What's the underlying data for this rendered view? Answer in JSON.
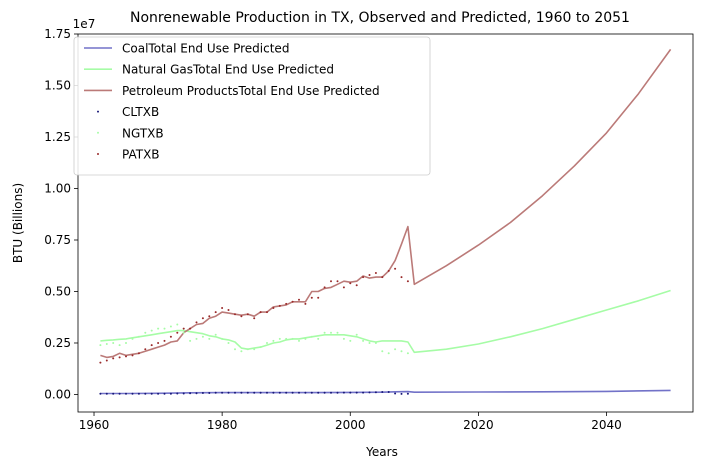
{
  "chart_data": {
    "type": "line",
    "title": "Nonrenewable Production in TX, Observed and Predicted, 1960 to 2051",
    "xlabel": "Years",
    "ylabel": "BTU (Billions)",
    "offset_text": "1e7",
    "xlim": [
      1957.5,
      2053.5
    ],
    "ylim": [
      -0.085,
      1.75
    ],
    "y_scale_factor": 10000000,
    "x_ticks": [
      1960,
      1980,
      2000,
      2020,
      2040
    ],
    "y_ticks": [
      0.0,
      0.25,
      0.5,
      0.75,
      1.0,
      1.25,
      1.5,
      1.75
    ],
    "y_tick_labels": [
      "0.00",
      "0.25",
      "0.50",
      "0.75",
      "1.00",
      "1.25",
      "1.50",
      "1.75"
    ],
    "grid": false,
    "legend_position": "upper-left",
    "colors": {
      "coal": "#7272c8",
      "coal_dots": "#1a1a7a",
      "ng": "#a6fca6",
      "pet": "#bb7a78",
      "pet_dots": "#9a2a2a"
    },
    "series": [
      {
        "name": "CoalTotal End Use Predicted",
        "kind": "line",
        "color_key": "coal",
        "x": [
          1961,
          1965,
          1970,
          1975,
          1980,
          1985,
          1990,
          1995,
          2000,
          2005,
          2007,
          2009,
          2010,
          2020,
          2030,
          2040,
          2050
        ],
        "y": [
          0.005,
          0.005,
          0.006,
          0.008,
          0.009,
          0.009,
          0.009,
          0.009,
          0.01,
          0.011,
          0.013,
          0.014,
          0.011,
          0.012,
          0.013,
          0.015,
          0.02
        ]
      },
      {
        "name": "Natural GasTotal End Use Predicted",
        "kind": "line",
        "color_key": "ng",
        "x": [
          1961,
          1962,
          1963,
          1964,
          1965,
          1966,
          1967,
          1968,
          1969,
          1970,
          1971,
          1972,
          1973,
          1974,
          1975,
          1976,
          1977,
          1978,
          1979,
          1980,
          1981,
          1982,
          1983,
          1984,
          1985,
          1986,
          1987,
          1988,
          1989,
          1990,
          1991,
          1992,
          1993,
          1994,
          1995,
          1996,
          1997,
          1998,
          1999,
          2000,
          2001,
          2002,
          2003,
          2004,
          2005,
          2006,
          2007,
          2008,
          2009,
          2010,
          2015,
          2020,
          2025,
          2030,
          2035,
          2040,
          2045,
          2050
        ],
        "y": [
          0.26,
          0.263,
          0.265,
          0.268,
          0.27,
          0.275,
          0.28,
          0.285,
          0.29,
          0.295,
          0.3,
          0.305,
          0.31,
          0.31,
          0.305,
          0.3,
          0.295,
          0.285,
          0.28,
          0.27,
          0.265,
          0.255,
          0.225,
          0.22,
          0.225,
          0.23,
          0.24,
          0.25,
          0.255,
          0.265,
          0.27,
          0.27,
          0.275,
          0.28,
          0.285,
          0.29,
          0.29,
          0.29,
          0.29,
          0.285,
          0.28,
          0.27,
          0.26,
          0.255,
          0.26,
          0.26,
          0.26,
          0.26,
          0.255,
          0.205,
          0.22,
          0.245,
          0.28,
          0.32,
          0.365,
          0.41,
          0.455,
          0.505
        ]
      },
      {
        "name": "Petroleum ProductsTotal End Use Predicted",
        "kind": "line",
        "color_key": "pet",
        "x": [
          1961,
          1962,
          1963,
          1964,
          1965,
          1966,
          1967,
          1968,
          1969,
          1970,
          1971,
          1972,
          1973,
          1974,
          1975,
          1976,
          1977,
          1978,
          1979,
          1980,
          1981,
          1982,
          1983,
          1984,
          1985,
          1986,
          1987,
          1988,
          1989,
          1990,
          1991,
          1992,
          1993,
          1994,
          1995,
          1996,
          1997,
          1998,
          1999,
          2000,
          2001,
          2002,
          2003,
          2004,
          2005,
          2006,
          2007,
          2008,
          2009,
          2010,
          2015,
          2020,
          2025,
          2030,
          2035,
          2040,
          2045,
          2050
        ],
        "y": [
          0.19,
          0.18,
          0.185,
          0.2,
          0.19,
          0.195,
          0.2,
          0.21,
          0.22,
          0.23,
          0.24,
          0.255,
          0.26,
          0.3,
          0.32,
          0.34,
          0.345,
          0.37,
          0.38,
          0.4,
          0.395,
          0.39,
          0.385,
          0.39,
          0.38,
          0.4,
          0.4,
          0.425,
          0.43,
          0.435,
          0.45,
          0.45,
          0.45,
          0.5,
          0.5,
          0.515,
          0.52,
          0.535,
          0.55,
          0.545,
          0.55,
          0.575,
          0.565,
          0.57,
          0.57,
          0.6,
          0.65,
          0.73,
          0.815,
          0.535,
          0.625,
          0.725,
          0.835,
          0.965,
          1.11,
          1.27,
          1.46,
          1.675
        ]
      },
      {
        "name": "CLTXB",
        "kind": "scatter",
        "color_key": "coal_dots",
        "x": [
          1961,
          1962,
          1963,
          1964,
          1965,
          1966,
          1967,
          1968,
          1969,
          1970,
          1971,
          1972,
          1973,
          1974,
          1975,
          1976,
          1977,
          1978,
          1979,
          1980,
          1981,
          1982,
          1983,
          1984,
          1985,
          1986,
          1987,
          1988,
          1989,
          1990,
          1991,
          1992,
          1993,
          1994,
          1995,
          1996,
          1997,
          1998,
          1999,
          2000,
          2001,
          2002,
          2003,
          2004,
          2005,
          2006,
          2007,
          2008,
          2009
        ],
        "y": [
          0.004,
          0.004,
          0.004,
          0.004,
          0.004,
          0.004,
          0.004,
          0.004,
          0.004,
          0.004,
          0.004,
          0.004,
          0.005,
          0.005,
          0.006,
          0.006,
          0.007,
          0.007,
          0.008,
          0.008,
          0.008,
          0.008,
          0.008,
          0.008,
          0.008,
          0.008,
          0.008,
          0.008,
          0.008,
          0.008,
          0.008,
          0.008,
          0.008,
          0.008,
          0.008,
          0.008,
          0.008,
          0.008,
          0.009,
          0.009,
          0.009,
          0.009,
          0.01,
          0.011,
          0.012,
          0.012,
          0.005,
          0.003,
          0.004
        ]
      },
      {
        "name": "NGTXB",
        "kind": "scatter",
        "color_key": "ng",
        "x": [
          1961,
          1962,
          1963,
          1964,
          1965,
          1966,
          1967,
          1968,
          1969,
          1970,
          1971,
          1972,
          1973,
          1974,
          1975,
          1976,
          1977,
          1978,
          1979,
          1980,
          1981,
          1982,
          1983,
          1984,
          1985,
          1986,
          1987,
          1988,
          1989,
          1990,
          1991,
          1992,
          1993,
          1994,
          1995,
          1996,
          1997,
          1998,
          1999,
          2000,
          2001,
          2002,
          2003,
          2004,
          2005,
          2006,
          2007,
          2008,
          2009
        ],
        "y": [
          0.24,
          0.245,
          0.25,
          0.24,
          0.25,
          0.27,
          0.28,
          0.3,
          0.31,
          0.32,
          0.32,
          0.33,
          0.34,
          0.3,
          0.26,
          0.27,
          0.28,
          0.27,
          0.29,
          0.27,
          0.25,
          0.22,
          0.21,
          0.22,
          0.22,
          0.23,
          0.25,
          0.26,
          0.27,
          0.27,
          0.27,
          0.26,
          0.27,
          0.28,
          0.27,
          0.3,
          0.3,
          0.3,
          0.27,
          0.26,
          0.29,
          0.26,
          0.25,
          0.25,
          0.21,
          0.2,
          0.22,
          0.21,
          0.2
        ]
      },
      {
        "name": "PATXB",
        "kind": "scatter",
        "color_key": "pet_dots",
        "x": [
          1961,
          1962,
          1963,
          1964,
          1965,
          1966,
          1967,
          1968,
          1969,
          1970,
          1971,
          1972,
          1973,
          1974,
          1975,
          1976,
          1977,
          1978,
          1979,
          1980,
          1981,
          1982,
          1983,
          1984,
          1985,
          1986,
          1987,
          1988,
          1989,
          1990,
          1991,
          1992,
          1993,
          1994,
          1995,
          1996,
          1997,
          1998,
          1999,
          2000,
          2001,
          2002,
          2003,
          2004,
          2005,
          2006,
          2007,
          2008,
          2009
        ],
        "y": [
          0.155,
          0.165,
          0.175,
          0.18,
          0.185,
          0.19,
          0.2,
          0.22,
          0.24,
          0.25,
          0.26,
          0.28,
          0.3,
          0.32,
          0.32,
          0.35,
          0.37,
          0.38,
          0.4,
          0.42,
          0.41,
          0.39,
          0.38,
          0.39,
          0.37,
          0.4,
          0.4,
          0.42,
          0.43,
          0.44,
          0.45,
          0.46,
          0.44,
          0.47,
          0.47,
          0.52,
          0.55,
          0.55,
          0.52,
          0.54,
          0.53,
          0.57,
          0.58,
          0.59,
          0.57,
          0.6,
          0.61,
          0.57,
          0.55
        ]
      }
    ]
  }
}
